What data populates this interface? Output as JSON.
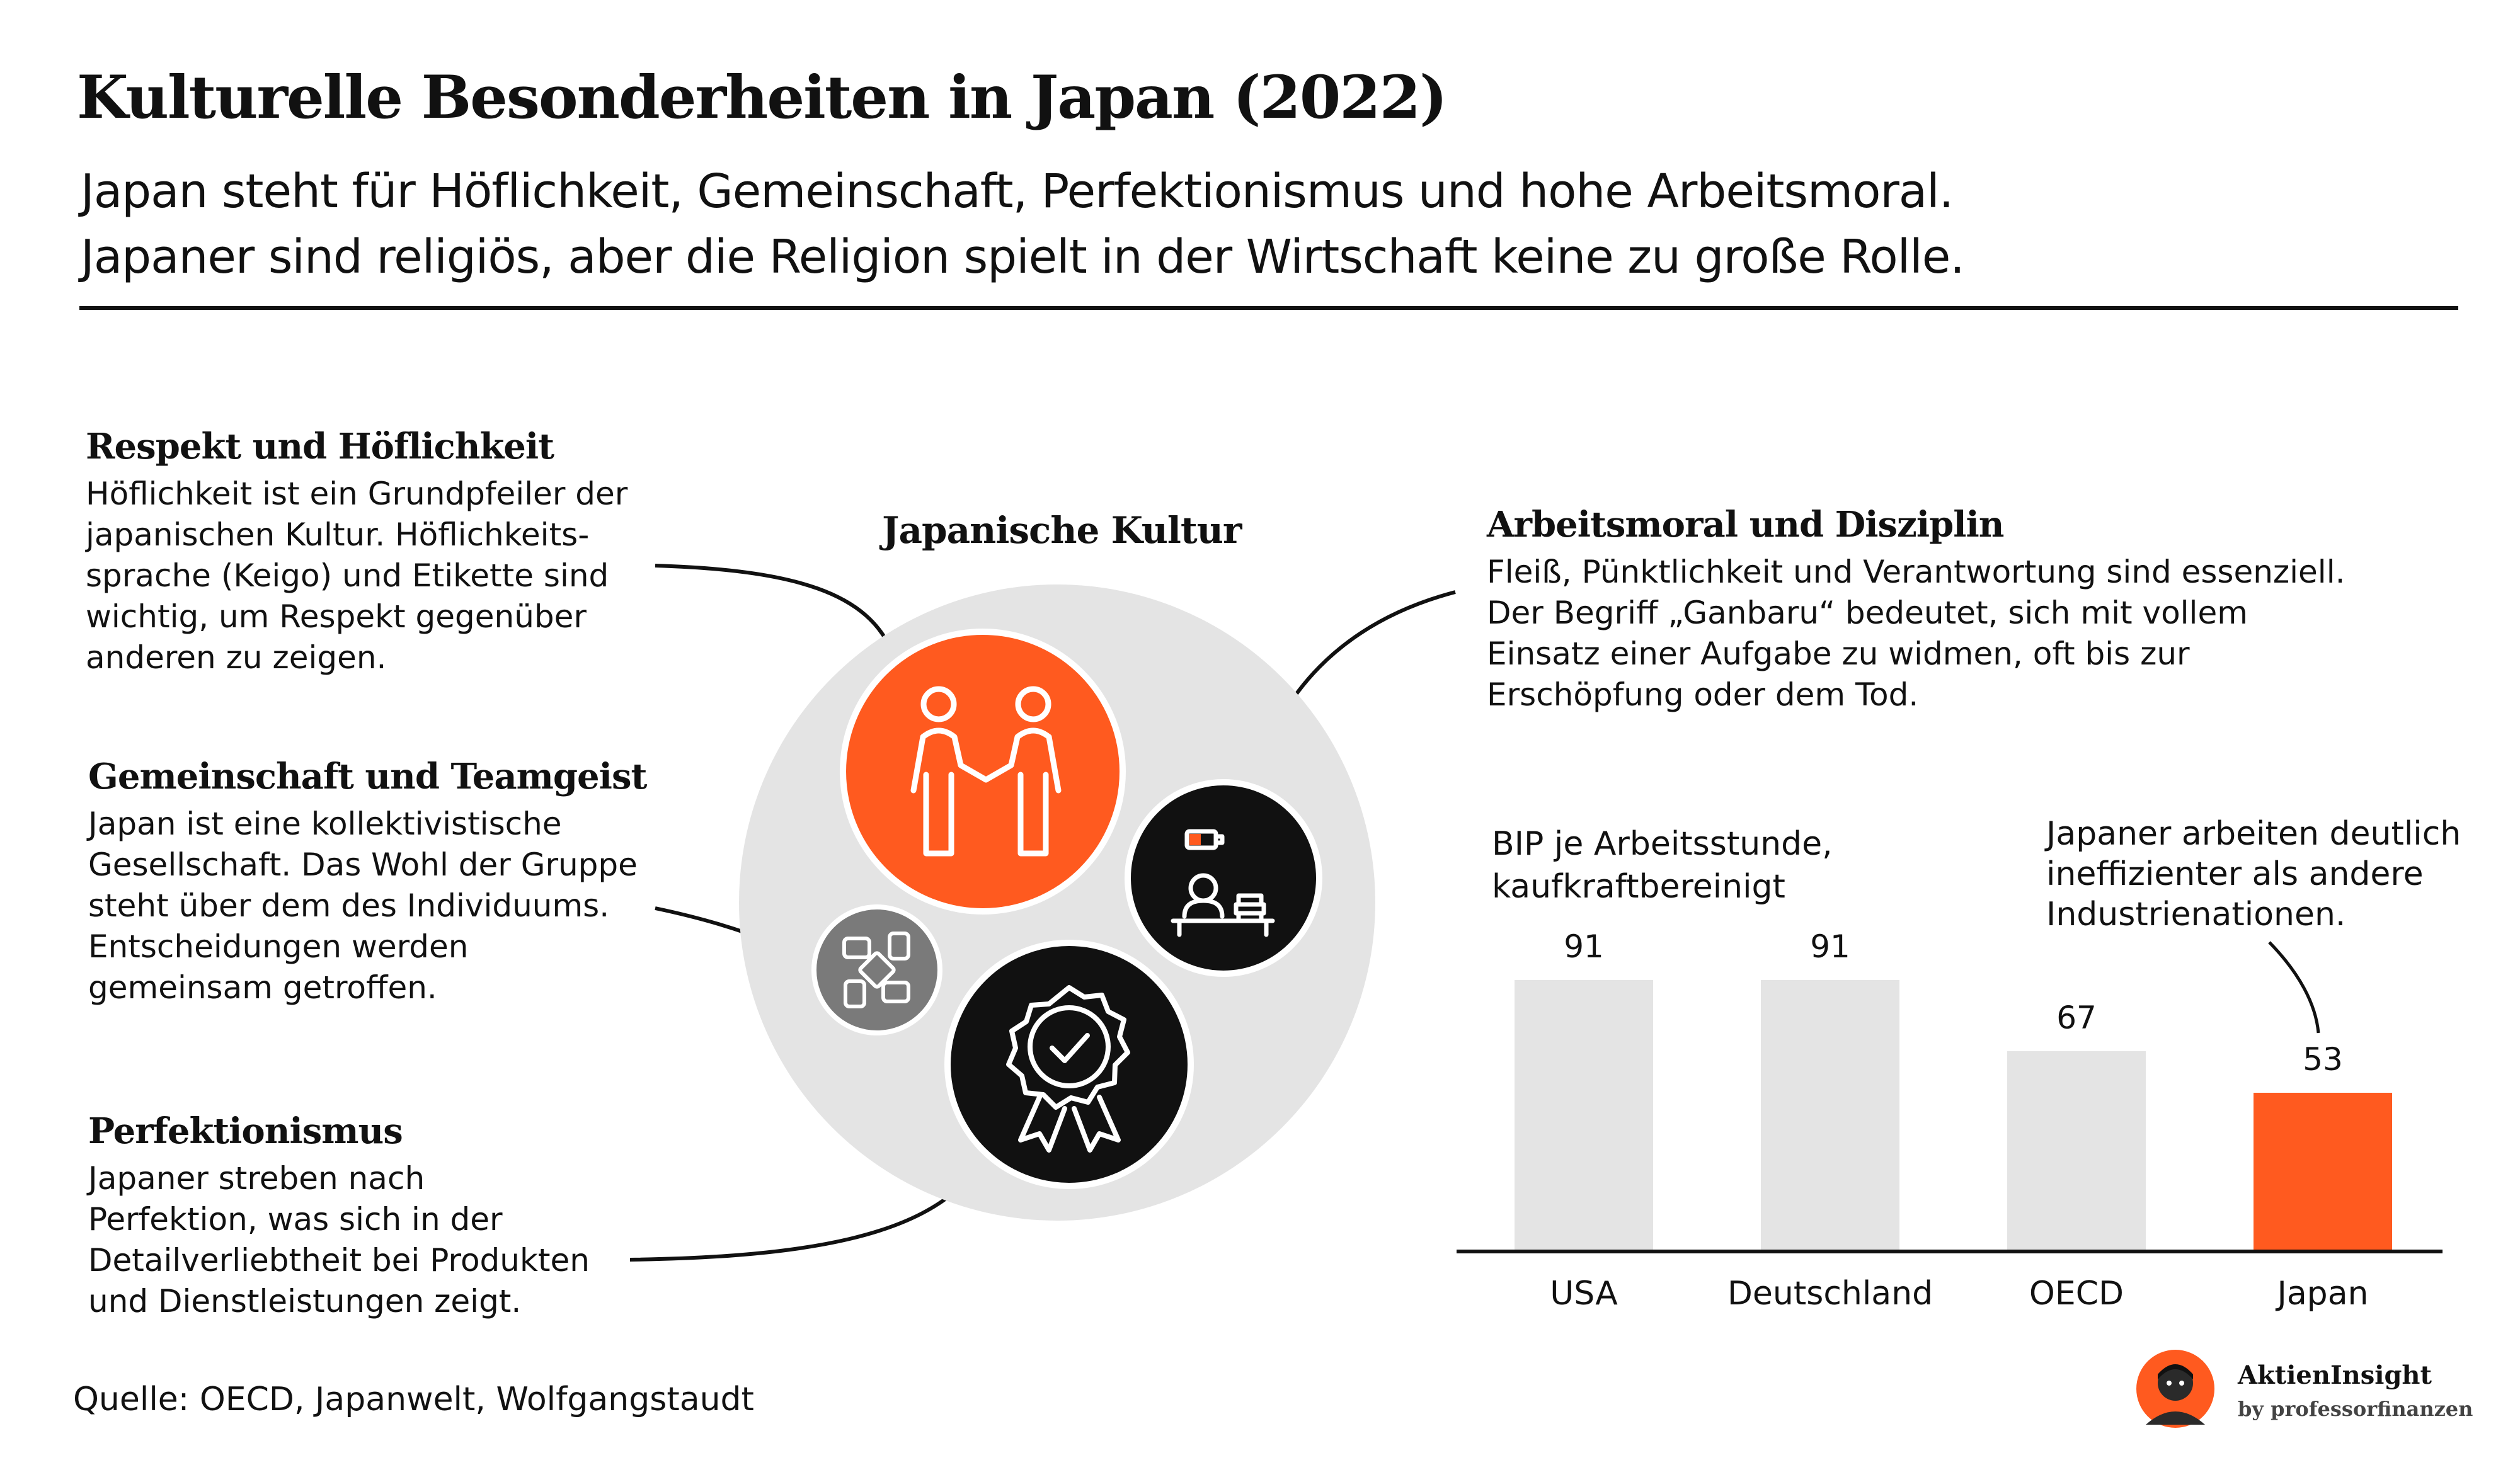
{
  "header": {
    "title": "Kulturelle Besonderheiten in Japan (2022)",
    "subtitle_line1": "Japan steht für Höflichkeit, Gemeinschaft, Perfektionismus und hohe Arbeitsmoral.",
    "subtitle_line2": "Japaner sind religiös, aber die Religion spielt in der Wirtschaft keine zu große Rolle."
  },
  "sections": {
    "respekt": {
      "heading": "Respekt und Höflichkeit",
      "lines": [
        "Höflichkeit ist ein Grundpfeiler der",
        "japanischen Kultur. Höflichkeits-",
        "sprache (Keigo) und Etikette sind",
        "wichtig, um Respekt gegenüber",
        "anderen zu zeigen."
      ]
    },
    "gemeinschaft": {
      "heading": "Gemeinschaft und Teamgeist",
      "lines": [
        "Japan ist eine kollektivistische",
        "Gesellschaft. Das Wohl der Gruppe",
        "steht über dem des Individuums.",
        "Entscheidungen werden",
        "gemeinsam getroffen."
      ]
    },
    "perfektionismus": {
      "heading": "Perfektionismus",
      "lines": [
        "Japaner streben nach",
        "Perfektion, was sich in der",
        "Detailverliebtheit bei Produkten",
        "und Dienstleistungen zeigt."
      ]
    },
    "arbeitsmoral": {
      "heading": "Arbeitsmoral und Disziplin",
      "lines": [
        "Fleiß, Pünktlichkeit und Verantwortung sind essenziell.",
        "Der Begriff „Ganbaru“ bedeutet, sich mit vollem",
        "Einsatz einer Aufgabe zu widmen, oft bis zur",
        "Erschöpfung oder dem Tod."
      ]
    }
  },
  "illustration": {
    "label": "Japanische Kultur",
    "icons": [
      "handshake-icon",
      "teamwork-hands-icon",
      "worker-desk-icon",
      "quality-badge-icon"
    ]
  },
  "chart_data": {
    "type": "bar",
    "title": "BIP je Arbeitsstunde, kaufkraftbereinigt",
    "title_lines": [
      "BIP je Arbeitsstunde,",
      "kaufkraftbereinigt"
    ],
    "categories": [
      "USA",
      "Deutschland",
      "OECD",
      "Japan"
    ],
    "values": [
      91,
      91,
      67,
      53
    ],
    "value_labels": [
      "91",
      "91",
      "67",
      "53"
    ],
    "colors": [
      "#e4e4e4",
      "#e4e4e4",
      "#e4e4e4",
      "#ff5a1f"
    ],
    "ylim": [
      0,
      91
    ],
    "grid": false,
    "annotation_lines": [
      "Japaner arbeiten deutlich",
      "ineffizienter als andere",
      "Industrienationen."
    ]
  },
  "colors": {
    "accent": "#ff5a1f",
    "dark": "#111111",
    "circle_bg": "#e4e4e4",
    "grey_icon": "#7a7a7a"
  },
  "footer": {
    "source": "Quelle: OECD, Japanwelt, Wolfgangstaudt",
    "brand_name": "AktienInsight",
    "brand_by": "by professorfinanzen"
  }
}
